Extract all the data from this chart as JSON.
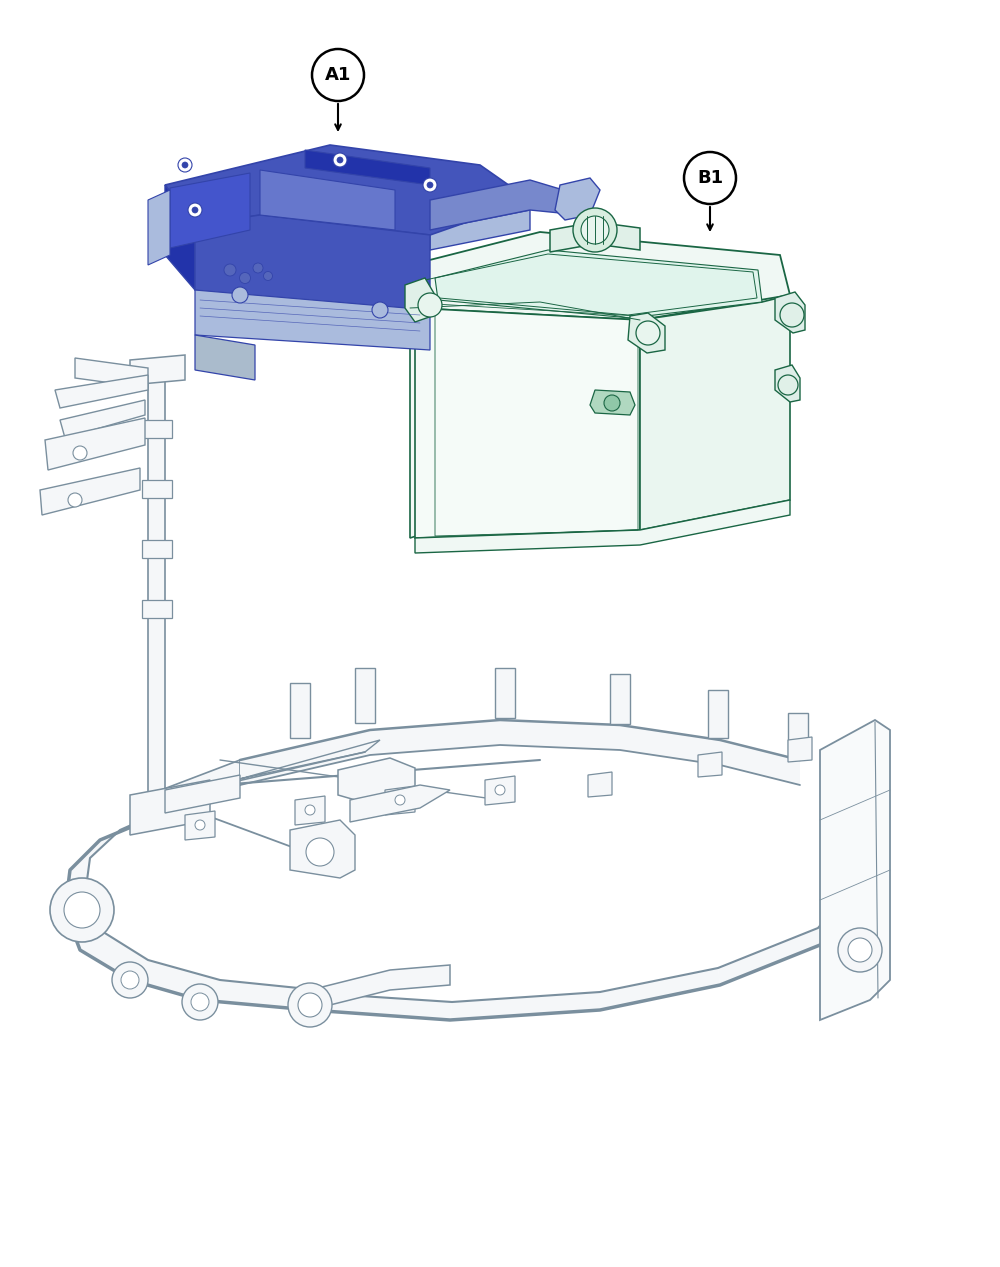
{
  "background_color": "#ffffff",
  "figure_width": 10.0,
  "figure_height": 12.67,
  "dpi": 100,
  "label_A1": "A1",
  "label_B1": "B1",
  "part_A1_color": "#3344aa",
  "part_A1_fill_dark": "#3344aa",
  "part_A1_fill_mid": "#5566cc",
  "part_A1_fill_light": "#8899dd",
  "part_B1_color": "#1a6644",
  "part_B1_fill": "#ffffff",
  "frame_color": "#9aabb8",
  "frame_fill": "#f5f7f9",
  "frame_color_dark": "#7a8f9e",
  "font_size_labels": 13
}
